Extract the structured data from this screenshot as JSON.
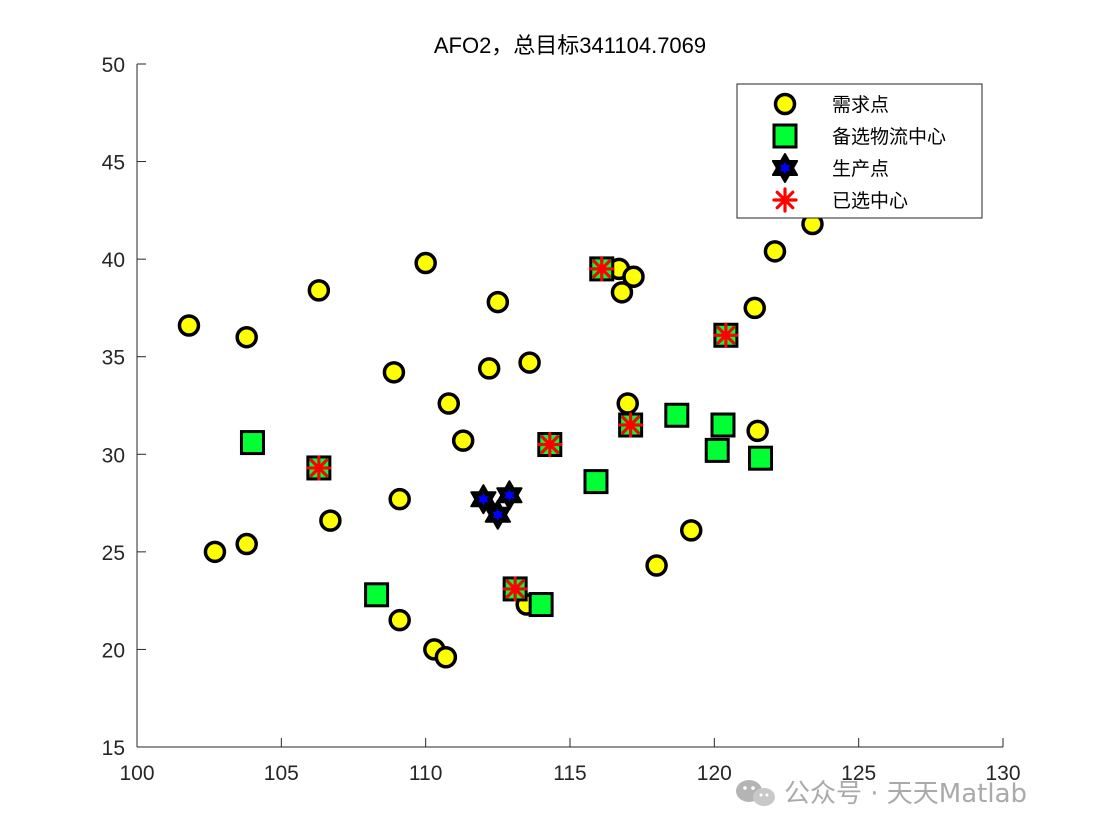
{
  "chart_data": {
    "type": "scatter",
    "title": "AFO2，总目标341104.7069",
    "xlim": [
      100,
      130
    ],
    "ylim": [
      15,
      50
    ],
    "xticks": [
      "100",
      "105",
      "110",
      "115",
      "120",
      "125",
      "130"
    ],
    "yticks": [
      "15",
      "20",
      "25",
      "30",
      "35",
      "40",
      "45",
      "50"
    ],
    "legend_position": "top-right",
    "series": [
      {
        "name": "需求点",
        "marker": "circle",
        "color": "#ffff00",
        "points": [
          [
            101.8,
            36.6
          ],
          [
            103.8,
            36.0
          ],
          [
            106.3,
            38.4
          ],
          [
            110.0,
            39.8
          ],
          [
            112.5,
            37.8
          ],
          [
            108.9,
            34.2
          ],
          [
            112.2,
            34.4
          ],
          [
            113.6,
            34.7
          ],
          [
            110.8,
            32.6
          ],
          [
            111.3,
            30.7
          ],
          [
            109.1,
            27.7
          ],
          [
            106.7,
            26.6
          ],
          [
            102.7,
            25.0
          ],
          [
            103.8,
            25.4
          ],
          [
            109.1,
            21.5
          ],
          [
            110.3,
            20.0
          ],
          [
            110.7,
            19.6
          ],
          [
            113.5,
            22.3
          ],
          [
            116.7,
            39.5
          ],
          [
            117.2,
            39.1
          ],
          [
            116.8,
            38.3
          ],
          [
            117.0,
            32.6
          ],
          [
            121.4,
            37.5
          ],
          [
            122.1,
            40.4
          ],
          [
            123.4,
            41.8
          ],
          [
            121.5,
            31.2
          ],
          [
            119.2,
            26.1
          ],
          [
            118.0,
            24.3
          ]
        ]
      },
      {
        "name": "备选物流中心",
        "marker": "square",
        "color": "#00ff33",
        "points": [
          [
            104.0,
            30.6
          ],
          [
            106.3,
            29.3
          ],
          [
            108.3,
            22.8
          ],
          [
            113.1,
            23.1
          ],
          [
            114.0,
            22.3
          ],
          [
            114.3,
            30.5
          ],
          [
            115.9,
            28.6
          ],
          [
            116.1,
            39.5
          ],
          [
            117.1,
            31.5
          ],
          [
            118.7,
            32.0
          ],
          [
            120.1,
            30.2
          ],
          [
            120.3,
            31.5
          ],
          [
            121.6,
            29.8
          ],
          [
            120.4,
            36.1
          ]
        ]
      },
      {
        "name": "生产点",
        "marker": "hexagram",
        "color": "#0000ff",
        "points": [
          [
            112.0,
            27.7
          ],
          [
            112.5,
            26.9
          ],
          [
            112.9,
            27.9
          ]
        ]
      },
      {
        "name": "已选中心",
        "marker": "asterisk",
        "color": "#ff0000",
        "points": [
          [
            106.3,
            29.3
          ],
          [
            113.1,
            23.1
          ],
          [
            114.3,
            30.5
          ],
          [
            116.1,
            39.5
          ],
          [
            117.1,
            31.5
          ],
          [
            120.4,
            36.1
          ]
        ]
      }
    ]
  },
  "watermark": {
    "text": "公众号 · 天天Matlab",
    "icon": "wechat-icon"
  }
}
